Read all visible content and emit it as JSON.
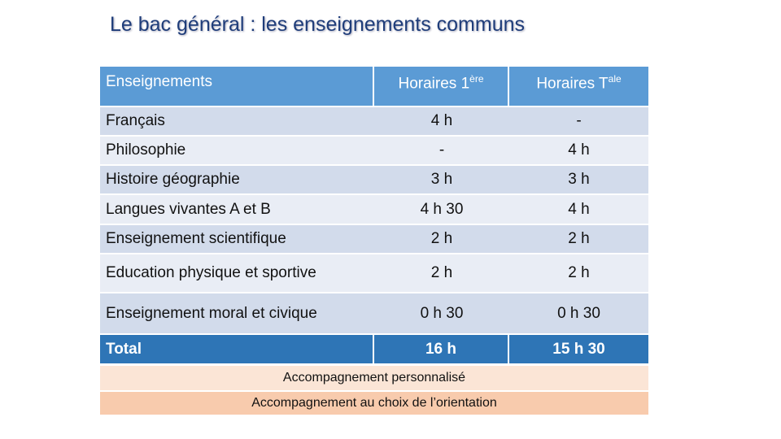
{
  "title": "Le bac général : les enseignements communs",
  "table": {
    "header": [
      {
        "text": "Enseignements"
      },
      {
        "text": "Horaires 1",
        "sup": "ère"
      },
      {
        "text": "Horaires T",
        "sup": "ale"
      }
    ],
    "rows": [
      [
        "Français",
        "4 h",
        "-"
      ],
      [
        "Philosophie",
        "-",
        "4 h"
      ],
      [
        "Histoire géographie",
        "3 h",
        "3 h"
      ],
      [
        "Langues vivantes A et B",
        "4 h 30",
        "4 h"
      ],
      [
        "Enseignement scientifique",
        "2 h",
        "2 h"
      ],
      [
        "Education physique et sportive",
        "2 h",
        "2 h"
      ],
      [
        "Enseignement moral et civique",
        "0 h 30",
        "0 h 30"
      ]
    ],
    "total": [
      "Total",
      "16 h",
      "15 h 30"
    ]
  },
  "footer": [
    "Accompagnement personnalisé",
    "Accompagnement au choix de l’orientation"
  ]
}
